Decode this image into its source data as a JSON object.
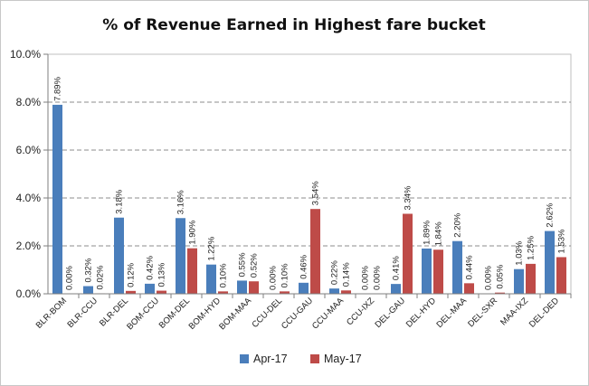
{
  "chart_data": {
    "type": "bar",
    "title": "% of Revenue Earned in Highest fare bucket",
    "xlabel": "",
    "ylabel": "",
    "ylim": [
      0,
      10
    ],
    "yticks": [
      "0.0%",
      "2.0%",
      "4.0%",
      "6.0%",
      "8.0%",
      "10.0%"
    ],
    "grid": true,
    "legend_position": "bottom",
    "categories": [
      "BLR-BOM",
      "BLR-CCU",
      "BLR-DEL",
      "BOM-CCU",
      "BOM-DEL",
      "BOM-HYD",
      "BOM-MAA",
      "CCU-DEL",
      "CCU-GAU",
      "CCU-MAA",
      "CCU-IXZ",
      "DEL-GAU",
      "DEL-HYD",
      "DEL-MAA",
      "DEL-SXR",
      "MAA-IXZ",
      "DEL-DED"
    ],
    "series": [
      {
        "name": "Apr-17",
        "color": "#4a7ebb",
        "values": [
          7.89,
          0.32,
          3.18,
          0.42,
          3.16,
          1.22,
          0.55,
          0.0,
          0.46,
          0.22,
          0.0,
          0.41,
          1.89,
          2.2,
          0.0,
          1.03,
          2.62
        ],
        "labels": [
          "7.89%",
          "0.32%",
          "3.18%",
          "0.42%",
          "3.16%",
          "1.22%",
          "0.55%",
          "0.00%",
          "0.46%",
          "0.22%",
          "0.00%",
          "0.41%",
          "1.89%",
          "2.20%",
          "0.00%",
          "1.03%",
          "2.62%"
        ]
      },
      {
        "name": "May-17",
        "color": "#be4b48",
        "values": [
          0.0,
          0.02,
          0.12,
          0.13,
          1.9,
          0.1,
          0.52,
          0.1,
          3.54,
          0.14,
          0.0,
          3.34,
          1.84,
          0.44,
          0.05,
          1.25,
          1.53
        ],
        "labels": [
          "0.00%",
          "0.02%",
          "0.12%",
          "0.13%",
          "1.90%",
          "0.10%",
          "0.52%",
          "0.10%",
          "3.54%",
          "0.14%",
          "0.00%",
          "3.34%",
          "1.84%",
          "0.44%",
          "0.05%",
          "1.25%",
          "1.53%"
        ]
      }
    ]
  }
}
